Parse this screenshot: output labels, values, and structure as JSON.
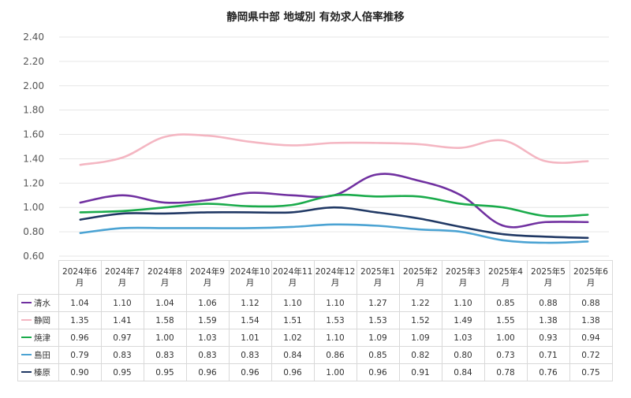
{
  "chart_data": {
    "type": "line",
    "title": "静岡県中部 地域別 有効求人倍率推移",
    "ylim": [
      0.6,
      2.4
    ],
    "yticks": [
      "0.60",
      "0.80",
      "1.00",
      "1.20",
      "1.40",
      "1.60",
      "1.80",
      "2.00",
      "2.20",
      "2.40"
    ],
    "grid": true,
    "legend_placement": "data-table-left",
    "categories": [
      "2024年6月",
      "2024年7月",
      "2024年8月",
      "2024年9月",
      "2024年10月",
      "2024年11月",
      "2024年12月",
      "2025年1月",
      "2025年2月",
      "2025年3月",
      "2025年4月",
      "2025年5月",
      "2025年6月"
    ],
    "series": [
      {
        "name": "清水",
        "color": "#7030a0",
        "values": [
          1.04,
          1.1,
          1.04,
          1.06,
          1.12,
          1.1,
          1.1,
          1.27,
          1.22,
          1.1,
          0.85,
          0.88,
          0.88
        ],
        "labels": [
          "1.04",
          "1.10",
          "1.04",
          "1.06",
          "1.12",
          "1.10",
          "1.10",
          "1.27",
          "1.22",
          "1.10",
          "0.85",
          "0.88",
          "0.88"
        ]
      },
      {
        "name": "静岡",
        "color": "#f4b6c2",
        "values": [
          1.35,
          1.41,
          1.58,
          1.59,
          1.54,
          1.51,
          1.53,
          1.53,
          1.52,
          1.49,
          1.55,
          1.38,
          1.38
        ],
        "labels": [
          "1.35",
          "1.41",
          "1.58",
          "1.59",
          "1.54",
          "1.51",
          "1.53",
          "1.53",
          "1.52",
          "1.49",
          "1.55",
          "1.38",
          "1.38"
        ]
      },
      {
        "name": "焼津",
        "color": "#1aab4b",
        "values": [
          0.96,
          0.97,
          1.0,
          1.03,
          1.01,
          1.02,
          1.1,
          1.09,
          1.09,
          1.03,
          1.0,
          0.93,
          0.94
        ],
        "labels": [
          "0.96",
          "0.97",
          "1.00",
          "1.03",
          "1.01",
          "1.02",
          "1.10",
          "1.09",
          "1.09",
          "1.03",
          "1.00",
          "0.93",
          "0.94"
        ]
      },
      {
        "name": "島田",
        "color": "#4ba3d3",
        "values": [
          0.79,
          0.83,
          0.83,
          0.83,
          0.83,
          0.84,
          0.86,
          0.85,
          0.82,
          0.8,
          0.73,
          0.71,
          0.72
        ],
        "labels": [
          "0.79",
          "0.83",
          "0.83",
          "0.83",
          "0.83",
          "0.84",
          "0.86",
          "0.85",
          "0.82",
          "0.80",
          "0.73",
          "0.71",
          "0.72"
        ]
      },
      {
        "name": "榛原",
        "color": "#203864",
        "values": [
          0.9,
          0.95,
          0.95,
          0.96,
          0.96,
          0.96,
          1.0,
          0.96,
          0.91,
          0.84,
          0.78,
          0.76,
          0.75
        ],
        "labels": [
          "0.90",
          "0.95",
          "0.95",
          "0.96",
          "0.96",
          "0.96",
          "1.00",
          "0.96",
          "0.91",
          "0.84",
          "0.78",
          "0.76",
          "0.75"
        ]
      }
    ]
  }
}
